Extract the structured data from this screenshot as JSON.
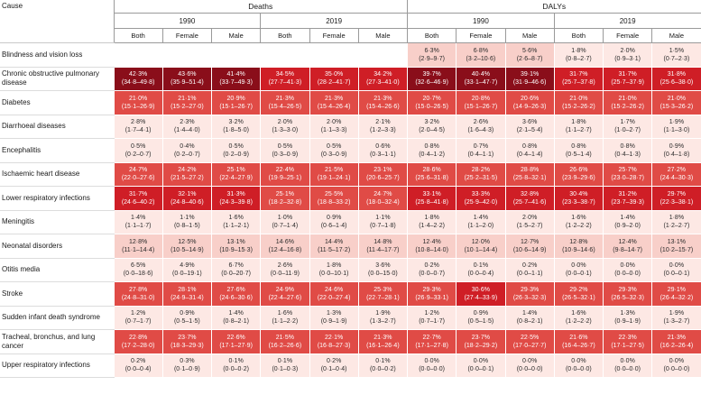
{
  "header": {
    "cause": "Cause",
    "groups": [
      "Deaths",
      "DALYs"
    ],
    "years": [
      "1990",
      "2019",
      "1990",
      "2019"
    ],
    "sexes": [
      "Both",
      "Female",
      "Male"
    ]
  },
  "colors": {
    "dark": "#8a0e1a",
    "high": "#cf1e26",
    "mid": "#e04b46",
    "light": "#f8cfc9",
    "pale": "#fde8e4",
    "empty": "#ffffff"
  },
  "rows": [
    {
      "cause": "Blindness and vision loss",
      "cells": [
        null,
        null,
        null,
        null,
        null,
        null,
        {
          "v": "6·3%",
          "ci": "(2·9–9·7)",
          "s": "light"
        },
        {
          "v": "6·8%",
          "ci": "(3·2–10·6)",
          "s": "light"
        },
        {
          "v": "5·6%",
          "ci": "(2·6–8·7)",
          "s": "light"
        },
        {
          "v": "1·8%",
          "ci": "(0·8–2·7)",
          "s": "pale"
        },
        {
          "v": "2·0%",
          "ci": "(0·9–3·1)",
          "s": "pale"
        },
        {
          "v": "1·5%",
          "ci": "(0·7–2·3)",
          "s": "pale"
        }
      ]
    },
    {
      "cause": "Chronic obstructive pulmonary disease",
      "cells": [
        {
          "v": "42·3%",
          "ci": "(34·8–49·8)",
          "s": "dark"
        },
        {
          "v": "43·6%",
          "ci": "(35·9–51·4)",
          "s": "dark"
        },
        {
          "v": "41·4%",
          "ci": "(33·7–49·3)",
          "s": "dark"
        },
        {
          "v": "34·5%",
          "ci": "(27·7–41·3)",
          "s": "high"
        },
        {
          "v": "35·0%",
          "ci": "(28·2–41·7)",
          "s": "high"
        },
        {
          "v": "34·2%",
          "ci": "(27·3–41·0)",
          "s": "high"
        },
        {
          "v": "39·7%",
          "ci": "(32·6–46·9)",
          "s": "dark"
        },
        {
          "v": "40·4%",
          "ci": "(33·1–47·7)",
          "s": "dark"
        },
        {
          "v": "39·1%",
          "ci": "(31·9–46·6)",
          "s": "dark"
        },
        {
          "v": "31·7%",
          "ci": "(25·7–37·8)",
          "s": "high"
        },
        {
          "v": "31·7%",
          "ci": "(25·7–37·9)",
          "s": "high"
        },
        {
          "v": "31·8%",
          "ci": "(25·6–38·0)",
          "s": "high"
        }
      ]
    },
    {
      "cause": "Diabetes",
      "cells": [
        {
          "v": "21·0%",
          "ci": "(15·1–26·9)",
          "s": "mid"
        },
        {
          "v": "21·1%",
          "ci": "(15·2–27·0)",
          "s": "mid"
        },
        {
          "v": "20·9%",
          "ci": "(15·1–26·7)",
          "s": "mid"
        },
        {
          "v": "21·3%",
          "ci": "(15·4–26·5)",
          "s": "mid"
        },
        {
          "v": "21·3%",
          "ci": "(15·4–26·4)",
          "s": "mid"
        },
        {
          "v": "21·3%",
          "ci": "(15·4–26·6)",
          "s": "mid"
        },
        {
          "v": "20·7%",
          "ci": "(15·0–26·5)",
          "s": "mid"
        },
        {
          "v": "20·8%",
          "ci": "(15·1–26·7)",
          "s": "mid"
        },
        {
          "v": "20·6%",
          "ci": "(14·9–26·3)",
          "s": "mid"
        },
        {
          "v": "21·0%",
          "ci": "(15·2–26·2)",
          "s": "mid"
        },
        {
          "v": "21·0%",
          "ci": "(15·2–26·2)",
          "s": "mid"
        },
        {
          "v": "21·0%",
          "ci": "(15·3–26·2)",
          "s": "mid"
        }
      ]
    },
    {
      "cause": "Diarrhoeal diseases",
      "cells": [
        {
          "v": "2·8%",
          "ci": "(1·7–4·1)",
          "s": "pale"
        },
        {
          "v": "2·3%",
          "ci": "(1·4–4·0)",
          "s": "pale"
        },
        {
          "v": "3·2%",
          "ci": "(1·8–5·0)",
          "s": "pale"
        },
        {
          "v": "2·0%",
          "ci": "(1·3–3·0)",
          "s": "pale"
        },
        {
          "v": "2·0%",
          "ci": "(1·1–3·3)",
          "s": "pale"
        },
        {
          "v": "2·1%",
          "ci": "(1·2–3·3)",
          "s": "pale"
        },
        {
          "v": "3·2%",
          "ci": "(2·0–4·5)",
          "s": "pale"
        },
        {
          "v": "2·6%",
          "ci": "(1·6–4·3)",
          "s": "pale"
        },
        {
          "v": "3·6%",
          "ci": "(2·1–5·4)",
          "s": "pale"
        },
        {
          "v": "1·8%",
          "ci": "(1·1–2·7)",
          "s": "pale"
        },
        {
          "v": "1·7%",
          "ci": "(1·0–2·7)",
          "s": "pale"
        },
        {
          "v": "1·9%",
          "ci": "(1·1–3·0)",
          "s": "pale"
        }
      ]
    },
    {
      "cause": "Encephalitis",
      "cells": [
        {
          "v": "0·5%",
          "ci": "(0·2–0·7)",
          "s": "pale"
        },
        {
          "v": "0·4%",
          "ci": "(0·2–0·7)",
          "s": "pale"
        },
        {
          "v": "0·5%",
          "ci": "(0·2–0·9)",
          "s": "pale"
        },
        {
          "v": "0·5%",
          "ci": "(0·3–0·9)",
          "s": "pale"
        },
        {
          "v": "0·5%",
          "ci": "(0·3–0·9)",
          "s": "pale"
        },
        {
          "v": "0·6%",
          "ci": "(0·3–1·1)",
          "s": "pale"
        },
        {
          "v": "0·8%",
          "ci": "(0·4–1·2)",
          "s": "pale"
        },
        {
          "v": "0·7%",
          "ci": "(0·4–1·1)",
          "s": "pale"
        },
        {
          "v": "0·8%",
          "ci": "(0·4–1·4)",
          "s": "pale"
        },
        {
          "v": "0·8%",
          "ci": "(0·5–1·4)",
          "s": "pale"
        },
        {
          "v": "0·8%",
          "ci": "(0·4–1·3)",
          "s": "pale"
        },
        {
          "v": "0·9%",
          "ci": "(0·4–1·8)",
          "s": "pale"
        }
      ]
    },
    {
      "cause": "Ischaemic heart disease",
      "cells": [
        {
          "v": "24·7%",
          "ci": "(22·0–27·6)",
          "s": "mid"
        },
        {
          "v": "24·2%",
          "ci": "(21·5–27·2)",
          "s": "mid"
        },
        {
          "v": "25·1%",
          "ci": "(22·4–27·9)",
          "s": "mid"
        },
        {
          "v": "22·4%",
          "ci": "(19·9–25·1)",
          "s": "mid"
        },
        {
          "v": "21·5%",
          "ci": "(19·1–24·1)",
          "s": "mid"
        },
        {
          "v": "23·1%",
          "ci": "(20·6–25·7)",
          "s": "mid"
        },
        {
          "v": "28·6%",
          "ci": "(25·6–31·8)",
          "s": "mid"
        },
        {
          "v": "28·2%",
          "ci": "(25·2–31·5)",
          "s": "mid"
        },
        {
          "v": "28·8%",
          "ci": "(25·8–32·1)",
          "s": "mid"
        },
        {
          "v": "26·6%",
          "ci": "(23·9–29·6)",
          "s": "mid"
        },
        {
          "v": "25·7%",
          "ci": "(23·0–28·7)",
          "s": "mid"
        },
        {
          "v": "27·2%",
          "ci": "(24·4–30·3)",
          "s": "mid"
        }
      ]
    },
    {
      "cause": "Lower respiratory infections",
      "cells": [
        {
          "v": "31·7%",
          "ci": "(24·6–40·2)",
          "s": "high"
        },
        {
          "v": "32·1%",
          "ci": "(24·8–40·6)",
          "s": "high"
        },
        {
          "v": "31·3%",
          "ci": "(24·3–39·8)",
          "s": "high"
        },
        {
          "v": "25·1%",
          "ci": "(18·2–32·8)",
          "s": "mid"
        },
        {
          "v": "25·5%",
          "ci": "(18·8–33·2)",
          "s": "mid"
        },
        {
          "v": "24·7%",
          "ci": "(18·0–32·4)",
          "s": "mid"
        },
        {
          "v": "33·1%",
          "ci": "(25·8–41·8)",
          "s": "high"
        },
        {
          "v": "33·3%",
          "ci": "(25·9–42·0)",
          "s": "high"
        },
        {
          "v": "32·8%",
          "ci": "(25·7–41·6)",
          "s": "high"
        },
        {
          "v": "30·4%",
          "ci": "(23·3–38·7)",
          "s": "high"
        },
        {
          "v": "31·2%",
          "ci": "(23·7–39·3)",
          "s": "high"
        },
        {
          "v": "29·7%",
          "ci": "(22·3–38·1)",
          "s": "high"
        }
      ]
    },
    {
      "cause": "Meningitis",
      "cells": [
        {
          "v": "1·4%",
          "ci": "(1·1–1·7)",
          "s": "pale"
        },
        {
          "v": "1·1%",
          "ci": "(0·8–1·5)",
          "s": "pale"
        },
        {
          "v": "1·6%",
          "ci": "(1·1–2·1)",
          "s": "pale"
        },
        {
          "v": "1·0%",
          "ci": "(0·7–1·4)",
          "s": "pale"
        },
        {
          "v": "0·9%",
          "ci": "(0·6–1·4)",
          "s": "pale"
        },
        {
          "v": "1·1%",
          "ci": "(0·7–1·8)",
          "s": "pale"
        },
        {
          "v": "1·8%",
          "ci": "(1·4–2·2)",
          "s": "pale"
        },
        {
          "v": "1·4%",
          "ci": "(1·1–2·0)",
          "s": "pale"
        },
        {
          "v": "2·0%",
          "ci": "(1·5–2·7)",
          "s": "pale"
        },
        {
          "v": "1·6%",
          "ci": "(1·2–2·2)",
          "s": "pale"
        },
        {
          "v": "1·4%",
          "ci": "(0·9–2·0)",
          "s": "pale"
        },
        {
          "v": "1·8%",
          "ci": "(1·2–2·7)",
          "s": "pale"
        }
      ]
    },
    {
      "cause": "Neonatal disorders",
      "cells": [
        {
          "v": "12·8%",
          "ci": "(11·1–14·4)",
          "s": "light"
        },
        {
          "v": "12·5%",
          "ci": "(10·5–14·9)",
          "s": "light"
        },
        {
          "v": "13·1%",
          "ci": "(10·9–15·3)",
          "s": "light"
        },
        {
          "v": "14·6%",
          "ci": "(12·4–16·8)",
          "s": "light"
        },
        {
          "v": "14·4%",
          "ci": "(11·5–17·2)",
          "s": "light"
        },
        {
          "v": "14·8%",
          "ci": "(11·4–17·7)",
          "s": "light"
        },
        {
          "v": "12·4%",
          "ci": "(10·8–14·0)",
          "s": "light"
        },
        {
          "v": "12·0%",
          "ci": "(10·1–14·4)",
          "s": "light"
        },
        {
          "v": "12·7%",
          "ci": "(10·6–14·9)",
          "s": "light"
        },
        {
          "v": "12·8%",
          "ci": "(10·9–14·6)",
          "s": "light"
        },
        {
          "v": "12·4%",
          "ci": "(9·8–14·7)",
          "s": "light"
        },
        {
          "v": "13·1%",
          "ci": "(10·2–15·7)",
          "s": "light"
        }
      ]
    },
    {
      "cause": "Otitis media",
      "cells": [
        {
          "v": "6·5%",
          "ci": "(0·0–18·6)",
          "s": "pale"
        },
        {
          "v": "4·9%",
          "ci": "(0·0–19·1)",
          "s": "pale"
        },
        {
          "v": "6·7%",
          "ci": "(0·0–20·7)",
          "s": "pale"
        },
        {
          "v": "2·6%",
          "ci": "(0·0–11·9)",
          "s": "pale"
        },
        {
          "v": "1·8%",
          "ci": "(0·0–10·1)",
          "s": "pale"
        },
        {
          "v": "3·6%",
          "ci": "(0·0–15·0)",
          "s": "pale"
        },
        {
          "v": "0·2%",
          "ci": "(0·0–0·7)",
          "s": "pale"
        },
        {
          "v": "0·1%",
          "ci": "(0·0–0·4)",
          "s": "pale"
        },
        {
          "v": "0·2%",
          "ci": "(0·0–1·1)",
          "s": "pale"
        },
        {
          "v": "0·0%",
          "ci": "(0·0–0·1)",
          "s": "pale"
        },
        {
          "v": "0·0%",
          "ci": "(0·0–0·0)",
          "s": "pale"
        },
        {
          "v": "0·0%",
          "ci": "(0·0–0·1)",
          "s": "pale"
        }
      ]
    },
    {
      "cause": "Stroke",
      "cells": [
        {
          "v": "27·8%",
          "ci": "(24·8–31·0)",
          "s": "mid"
        },
        {
          "v": "28·1%",
          "ci": "(24·9–31·4)",
          "s": "mid"
        },
        {
          "v": "27·6%",
          "ci": "(24·6–30·6)",
          "s": "mid"
        },
        {
          "v": "24·9%",
          "ci": "(22·4–27·6)",
          "s": "mid"
        },
        {
          "v": "24·6%",
          "ci": "(22·0–27·4)",
          "s": "mid"
        },
        {
          "v": "25·3%",
          "ci": "(22·7–28·1)",
          "s": "mid"
        },
        {
          "v": "29·3%",
          "ci": "(26·9–33·1)",
          "s": "mid"
        },
        {
          "v": "30·6%",
          "ci": "(27·4–33·9)",
          "s": "high"
        },
        {
          "v": "29·3%",
          "ci": "(26·3–32·3)",
          "s": "mid"
        },
        {
          "v": "29·2%",
          "ci": "(26·5–32·1)",
          "s": "mid"
        },
        {
          "v": "29·3%",
          "ci": "(26·5–32·3)",
          "s": "mid"
        },
        {
          "v": "29·1%",
          "ci": "(26·4–32·2)",
          "s": "mid"
        }
      ]
    },
    {
      "cause": "Sudden infant death syndrome",
      "cells": [
        {
          "v": "1·2%",
          "ci": "(0·7–1·7)",
          "s": "pale"
        },
        {
          "v": "0·9%",
          "ci": "(0·5–1·5)",
          "s": "pale"
        },
        {
          "v": "1·4%",
          "ci": "(0·8–2·1)",
          "s": "pale"
        },
        {
          "v": "1·6%",
          "ci": "(1·1–2·2)",
          "s": "pale"
        },
        {
          "v": "1·3%",
          "ci": "(0·9–1·9)",
          "s": "pale"
        },
        {
          "v": "1·9%",
          "ci": "(1·3–2·7)",
          "s": "pale"
        },
        {
          "v": "1·2%",
          "ci": "(0·7–1·7)",
          "s": "pale"
        },
        {
          "v": "0·9%",
          "ci": "(0·5–1·5)",
          "s": "pale"
        },
        {
          "v": "1·4%",
          "ci": "(0·8–2·1)",
          "s": "pale"
        },
        {
          "v": "1·6%",
          "ci": "(1·2–2·2)",
          "s": "pale"
        },
        {
          "v": "1·3%",
          "ci": "(0·9–1·9)",
          "s": "pale"
        },
        {
          "v": "1·9%",
          "ci": "(1·3–2·7)",
          "s": "pale"
        }
      ]
    },
    {
      "cause": "Tracheal, bronchus, and lung cancer",
      "cells": [
        {
          "v": "22·8%",
          "ci": "(17·2–28·0)",
          "s": "mid"
        },
        {
          "v": "23·7%",
          "ci": "(18·3–29·3)",
          "s": "mid"
        },
        {
          "v": "22·6%",
          "ci": "(17·1–27·9)",
          "s": "mid"
        },
        {
          "v": "21·5%",
          "ci": "(16·2–26·6)",
          "s": "mid"
        },
        {
          "v": "22·1%",
          "ci": "(16·8–27·3)",
          "s": "mid"
        },
        {
          "v": "21·3%",
          "ci": "(16·1–26·4)",
          "s": "mid"
        },
        {
          "v": "22·7%",
          "ci": "(17·1–27·8)",
          "s": "mid"
        },
        {
          "v": "23·7%",
          "ci": "(18·2–29·2)",
          "s": "mid"
        },
        {
          "v": "22·5%",
          "ci": "(17·0–27·7)",
          "s": "mid"
        },
        {
          "v": "21·6%",
          "ci": "(16·4–26·7)",
          "s": "mid"
        },
        {
          "v": "22·3%",
          "ci": "(17·1–27·5)",
          "s": "mid"
        },
        {
          "v": "21·3%",
          "ci": "(16·2–26·4)",
          "s": "mid"
        }
      ]
    },
    {
      "cause": "Upper respiratory infections",
      "cells": [
        {
          "v": "0·2%",
          "ci": "(0·0–0·4)",
          "s": "pale"
        },
        {
          "v": "0·3%",
          "ci": "(0·1–0·9)",
          "s": "pale"
        },
        {
          "v": "0·1%",
          "ci": "(0·0–0·2)",
          "s": "pale"
        },
        {
          "v": "0·1%",
          "ci": "(0·1–0·3)",
          "s": "pale"
        },
        {
          "v": "0·2%",
          "ci": "(0·1–0·4)",
          "s": "pale"
        },
        {
          "v": "0·1%",
          "ci": "(0·0–0·2)",
          "s": "pale"
        },
        {
          "v": "0·0%",
          "ci": "(0·0–0·0)",
          "s": "pale"
        },
        {
          "v": "0·0%",
          "ci": "(0·0–0·1)",
          "s": "pale"
        },
        {
          "v": "0·0%",
          "ci": "(0·0–0·0)",
          "s": "pale"
        },
        {
          "v": "0·0%",
          "ci": "(0·0–0·0)",
          "s": "pale"
        },
        {
          "v": "0·0%",
          "ci": "(0·0–0·0)",
          "s": "pale"
        },
        {
          "v": "0·0%",
          "ci": "(0·0–0·0)",
          "s": "pale"
        }
      ]
    }
  ]
}
